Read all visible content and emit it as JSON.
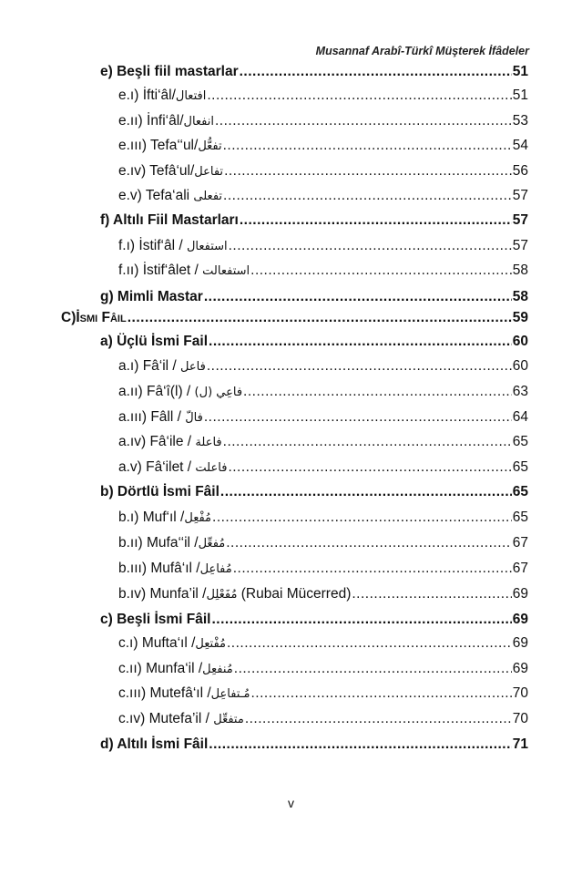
{
  "header": {
    "title": "Musannaf Arabî-Türkî Müşterek İfâdeler"
  },
  "entries": [
    {
      "level": 1,
      "text": "e) Beşli fiil mastarlar",
      "arabic": "",
      "suffix": "",
      "page": "51"
    },
    {
      "level": 2,
      "text": "e.ı) İfti‘âl/",
      "arabic": "افتعال",
      "suffix": "",
      "page": "51"
    },
    {
      "level": 2,
      "text": "e.ıı) İnfi‘âl/",
      "arabic": "انفعال",
      "suffix": "",
      "page": "53"
    },
    {
      "level": 2,
      "text": "e.ııı) Tefa‘‘ul/",
      "arabic": "تفعُّل",
      "suffix": "",
      "page": "54"
    },
    {
      "level": 2,
      "text": "e.ıv) Tefâ‘ul/",
      "arabic": "تفاعل",
      "suffix": "",
      "page": "56"
    },
    {
      "level": 2,
      "text": "e.v) Tefa‘ali ",
      "arabic": "تفعلى",
      "suffix": "",
      "page": "57"
    },
    {
      "level": 1,
      "text": "f) Altılı Fiil Mastarları",
      "arabic": "",
      "suffix": "",
      "page": "57"
    },
    {
      "level": 2,
      "text": "f.ı) İstif‘âl / ",
      "arabic": "استفعال",
      "suffix": "",
      "page": "57"
    },
    {
      "level": 2,
      "text": "f.ıı) İstif‘âlet / ",
      "arabic": "استفعالت",
      "suffix": "",
      "page": "58"
    },
    {
      "level": 1,
      "text": "g) Mimli Mastar",
      "arabic": "",
      "suffix": "",
      "page": "58"
    },
    {
      "level": 0,
      "text": "C)İsmi Fâil",
      "arabic": "",
      "suffix": "",
      "page": "59"
    },
    {
      "level": 1,
      "text": "a) Üçlü İsmi Fail",
      "arabic": "",
      "suffix": "",
      "page": "60"
    },
    {
      "level": 2,
      "text": "a.ı) Fâ‘il / ",
      "arabic": "فاعل",
      "suffix": "",
      "page": "60"
    },
    {
      "level": 2,
      "text": "a.ıı) Fâ‘î(l) / ",
      "arabic": "فاعِي (ل)",
      "suffix": "",
      "page": "63"
    },
    {
      "level": 2,
      "text": "a.ııı) Fâll / ",
      "arabic": "فالّ",
      "suffix": "",
      "page": "64"
    },
    {
      "level": 2,
      "text": "a.ıv) Fâ‘ile / ",
      "arabic": "فاعلة",
      "suffix": "",
      "page": "65"
    },
    {
      "level": 2,
      "text": "a.v) Fâ‘ilet / ",
      "arabic": "فاعلت",
      "suffix": "",
      "page": "65"
    },
    {
      "level": 1,
      "text": "b) Dörtlü İsmi Fâil",
      "arabic": "",
      "suffix": "",
      "page": "65"
    },
    {
      "level": 2,
      "text": "b.ı) Muf‘ıl /",
      "arabic": "مُفْعِل",
      "suffix": "",
      "page": "65"
    },
    {
      "level": 2,
      "text": "b.ıı) Mufa‘‘il /",
      "arabic": "مُفعِّل",
      "suffix": "",
      "page": "67"
    },
    {
      "level": 2,
      "text": "b.ııı) Mufâ‘ıl /",
      "arabic": "مُفاعِل",
      "suffix": "",
      "page": "67"
    },
    {
      "level": 2,
      "text": "b.ıv) Munfa’il /",
      "arabic": "مُفَعْلِل",
      "suffix": " (Rubai Mücerred)",
      "page": "69"
    },
    {
      "level": 1,
      "text": "c) Beşli İsmi Fâil",
      "arabic": "",
      "suffix": "",
      "page": "69"
    },
    {
      "level": 2,
      "text": "c.ı) Mufta‘ıl /",
      "arabic": "مُفْتعِل",
      "suffix": "",
      "page": "69"
    },
    {
      "level": 2,
      "text": "c.ıı) Munfa‘il /",
      "arabic": "مُنفعِل",
      "suffix": "",
      "page": "69"
    },
    {
      "level": 2,
      "text": "c.ııı) Mutefâ‘ıl /",
      "arabic": "مُـتفاعِل",
      "suffix": "",
      "page": "70"
    },
    {
      "level": 2,
      "text": "c.ıv) Mutefa’il / ",
      "arabic": "متفعِّل",
      "suffix": "",
      "page": "70"
    },
    {
      "level": 1,
      "text": "d) Altılı İsmi Fâil",
      "arabic": "",
      "suffix": "",
      "page": "71"
    }
  ],
  "footer": {
    "page_number": "v"
  }
}
